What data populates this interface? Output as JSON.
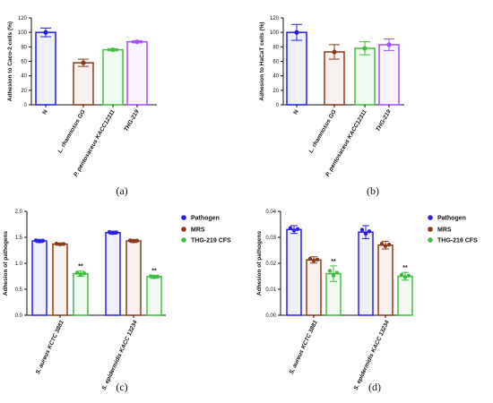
{
  "chart_data": [
    {
      "type": "bar",
      "panel_label": "(a)",
      "ylabel": "Adhesion to Caco-2 cells (%)",
      "ylim": [
        0,
        120
      ],
      "yticks": [
        "0",
        "20",
        "40",
        "60",
        "80",
        "100",
        "120"
      ],
      "categories": [
        "N",
        "L. rhamnosus GG",
        "P. pentosaceus KACC12311",
        "THG-219"
      ],
      "values": [
        100,
        58,
        76,
        87
      ],
      "errors": [
        6,
        5,
        1.5,
        1.5
      ],
      "colors": [
        "#1f1fe6",
        "#8b3a1a",
        "#3fbf3f",
        "#a64dff"
      ]
    },
    {
      "type": "bar",
      "panel_label": "(b)",
      "ylabel": "Adhesion to HaCaT cells (%)",
      "ylim": [
        0,
        120
      ],
      "yticks": [
        "0",
        "20",
        "40",
        "60",
        "80",
        "100",
        "120"
      ],
      "categories": [
        "N",
        "L. rhamnosus GG",
        "P. pentosaceus KACC12311",
        "THG-219"
      ],
      "values": [
        100,
        73,
        78,
        83
      ],
      "errors": [
        11,
        10,
        9,
        8
      ],
      "colors": [
        "#1f1fe6",
        "#8b3a1a",
        "#3fbf3f",
        "#a64dff"
      ]
    },
    {
      "type": "bar",
      "panel_label": "(c)",
      "ylabel": "Adhesion  of  pathogens",
      "ylim": [
        0,
        2.0
      ],
      "yticks": [
        "0.0",
        "0.5",
        "1.0",
        "1.5",
        "2.0"
      ],
      "categories": [
        "S. aureus KCTC 3881",
        "S. epidermidis KACC 13234"
      ],
      "series": [
        {
          "name": "Pathogen",
          "color": "#2a1fe6",
          "values": [
            1.43,
            1.59
          ],
          "errors": [
            0.03,
            0.03
          ]
        },
        {
          "name": "MRS",
          "color": "#8b3a1a",
          "values": [
            1.37,
            1.43
          ],
          "errors": [
            0.02,
            0.03
          ]
        },
        {
          "name": "THG-219 CFS",
          "color": "#3fbf3f",
          "values": [
            0.8,
            0.74
          ],
          "errors": [
            0.05,
            0.03
          ]
        }
      ],
      "annotations": [
        "",
        "",
        "**"
      ]
    },
    {
      "type": "bar",
      "panel_label": "(d)",
      "ylabel": "Adhesion of pathogens",
      "ylim": [
        0,
        0.04
      ],
      "yticks": [
        "0.00",
        "0.01",
        "0.02",
        "0.03",
        "0.04"
      ],
      "categories": [
        "S. aureus KCTC 3881",
        "S. epidermidis KACC 13234"
      ],
      "series": [
        {
          "name": "Pathogen",
          "color": "#2a1fe6",
          "values": [
            0.033,
            0.032
          ],
          "errors": [
            0.0015,
            0.0025
          ]
        },
        {
          "name": "MRS",
          "color": "#8b3a1a",
          "values": [
            0.0213,
            0.027
          ],
          "errors": [
            0.0012,
            0.0015
          ]
        },
        {
          "name": "THG-219 CFS",
          "color": "#3fbf3f",
          "values": [
            0.016,
            0.015
          ],
          "errors": [
            0.003,
            0.0015
          ]
        }
      ],
      "annotations": [
        "",
        "",
        "**"
      ]
    }
  ]
}
